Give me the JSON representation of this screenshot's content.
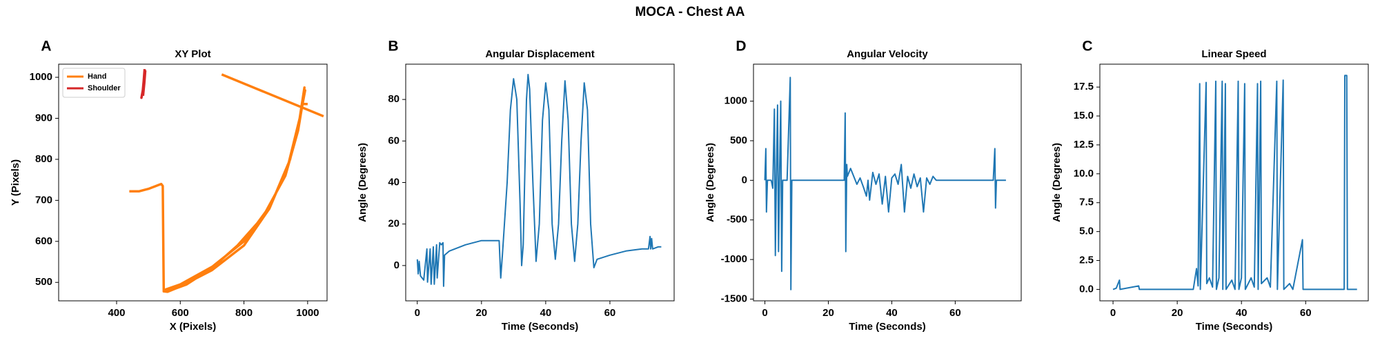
{
  "title": "MOCA - Chest AA",
  "chart_data": [
    {
      "type": "line",
      "panel_label": "A",
      "title": "XY Plot",
      "x_label": "X (Pixels)",
      "y_label": "Y (Pixels)",
      "xlim": [
        218,
        1061
      ],
      "ylim": [
        455,
        1032
      ],
      "xticks": [
        400,
        600,
        800,
        1000
      ],
      "yticks": [
        500,
        600,
        700,
        800,
        900,
        1000
      ],
      "legend": "upper left",
      "series": [
        {
          "name": "Hand",
          "color": "#ff7f0e",
          "x": [
            440,
            470,
            500,
            540,
            545,
            548,
            560,
            600,
            700,
            800,
            880,
            940,
            975,
            990,
            985,
            970,
            930,
            860,
            780,
            700,
            620,
            560,
            552,
            600,
            700,
            800,
            885,
            945,
            978,
            992,
            985,
            982,
            1000,
            null,
            730,
            1050
          ],
          "values": [
            722,
            722,
            728,
            740,
            735,
            478,
            477,
            490,
            530,
            590,
            680,
            790,
            900,
            975,
            940,
            870,
            760,
            660,
            590,
            535,
            495,
            478,
            482,
            495,
            538,
            600,
            690,
            800,
            910,
            968,
            945,
            935,
            935,
            null,
            1007,
            905
          ]
        },
        {
          "name": "Shoulder",
          "color": "#d62728",
          "x": [
            488,
            485,
            482,
            478,
            484,
            490,
            487,
            483
          ],
          "values": [
            1020,
            990,
            965,
            950,
            975,
            1015,
            985,
            955
          ]
        }
      ]
    },
    {
      "type": "line",
      "panel_label": "B",
      "title": "Angular Displacement",
      "x_label": "Time (Seconds)",
      "y_label": "Angle (Degrees)",
      "xlim": [
        -3.6,
        80
      ],
      "ylim": [
        -17,
        97
      ],
      "xticks": [
        0,
        20,
        40,
        60
      ],
      "yticks": [
        0,
        20,
        40,
        60,
        80
      ],
      "series": [
        {
          "name": "Angular Displacement",
          "color": "#1f77b4",
          "x": [
            0,
            0.3,
            0.6,
            1,
            2,
            3,
            3.2,
            4,
            4.3,
            5,
            5.3,
            6,
            6.2,
            7,
            7.5,
            8,
            8.2,
            8.5,
            10,
            15,
            20,
            24,
            25.5,
            26,
            26.5,
            28,
            29,
            30,
            31,
            32,
            32.5,
            33,
            34,
            34.5,
            35,
            36,
            37,
            38,
            39,
            40,
            41,
            42,
            43,
            44,
            45,
            46,
            47,
            48,
            49,
            50,
            51,
            52,
            53,
            54,
            55,
            56,
            60,
            65,
            70,
            72,
            72.5,
            72.7,
            73,
            73.3,
            75,
            76
          ],
          "values": [
            3,
            -4,
            2,
            -5,
            -7,
            8,
            -8,
            8,
            -9,
            9,
            -9,
            10,
            -6,
            11,
            10,
            11,
            -10,
            5,
            7,
            10,
            12,
            12,
            12,
            -6,
            5,
            40,
            75,
            90,
            80,
            30,
            0,
            10,
            80,
            92,
            85,
            40,
            2,
            20,
            70,
            88,
            75,
            20,
            3,
            20,
            60,
            89,
            70,
            20,
            2,
            20,
            60,
            88,
            75,
            20,
            -1,
            3,
            5,
            7,
            8,
            8,
            14,
            8,
            13,
            8,
            9,
            9
          ]
        }
      ]
    },
    {
      "type": "line",
      "panel_label": "D",
      "title": "Angular Velocity",
      "x_label": "Time (Seconds)",
      "y_label": "Angle (Degrees)",
      "xlim": [
        -3.6,
        80.8
      ],
      "ylim": [
        -1522,
        1467
      ],
      "xticks": [
        0,
        20,
        40,
        60
      ],
      "yticks": [
        -1500,
        -1000,
        -500,
        0,
        500,
        1000
      ],
      "series": [
        {
          "name": "Angular Velocity",
          "color": "#1f77b4",
          "x": [
            0,
            0.3,
            0.5,
            0.8,
            2,
            2.5,
            3,
            3.3,
            3.6,
            4,
            4.3,
            4.6,
            5,
            5.3,
            5.6,
            7,
            8,
            8.2,
            8.5,
            10,
            20,
            25,
            25.3,
            25.5,
            25.8,
            26,
            27,
            28,
            29,
            30,
            31,
            32,
            32.5,
            33,
            34,
            35,
            36,
            37,
            38,
            39,
            40,
            41,
            42,
            43,
            44,
            45,
            46,
            47,
            48,
            49,
            50,
            51,
            52,
            53,
            54,
            60,
            72,
            72.5,
            72.7,
            73,
            76
          ],
          "values": [
            0,
            400,
            -400,
            0,
            0,
            -100,
            900,
            -950,
            0,
            950,
            -900,
            0,
            1000,
            -1150,
            0,
            0,
            1300,
            -1380,
            0,
            0,
            0,
            0,
            850,
            -900,
            200,
            50,
            150,
            50,
            -50,
            30,
            -80,
            -200,
            0,
            -250,
            100,
            -50,
            80,
            -300,
            50,
            -400,
            30,
            80,
            -50,
            200,
            -400,
            50,
            -100,
            80,
            -80,
            30,
            -400,
            30,
            -50,
            50,
            0,
            0,
            0,
            400,
            -350,
            0,
            0
          ]
        }
      ]
    },
    {
      "type": "line",
      "panel_label": "C",
      "title": "Linear Speed",
      "x_label": "Time (Seconds)",
      "y_label": "Angle (Degrees)",
      "xlim": [
        -4.1,
        79.5
      ],
      "ylim": [
        -0.99,
        19.48
      ],
      "xticks": [
        0,
        20,
        40,
        60
      ],
      "yticks": [
        {
          "value": 0,
          "label": "0.0"
        },
        2.5,
        {
          "value": 5,
          "label": "5.0"
        },
        7.5,
        {
          "value": 10,
          "label": "10.0"
        },
        12.5,
        {
          "value": 15,
          "label": "15.0"
        },
        17.5
      ],
      "series": [
        {
          "name": "Linear Speed",
          "color": "#1f77b4",
          "x": [
            0,
            1,
            2,
            2.2,
            8,
            8.2,
            25,
            26,
            26.5,
            27,
            27.2,
            29,
            29.2,
            30,
            31,
            32,
            32.2,
            33,
            34,
            34.2,
            35,
            35.2,
            37,
            38,
            39,
            39.2,
            40,
            41,
            41.2,
            43,
            44,
            45,
            45.2,
            46,
            46.2,
            48,
            49,
            51,
            51.2,
            53,
            53.2,
            55,
            56,
            59,
            59.2,
            72,
            72.2,
            72.8,
            73,
            76
          ],
          "values": [
            0,
            0.1,
            0.8,
            0,
            0.3,
            0,
            0,
            1.8,
            0.3,
            17.8,
            0,
            17.9,
            0.5,
            1,
            0.2,
            18,
            0,
            1,
            18,
            0,
            17.8,
            0,
            0.8,
            0,
            18,
            0,
            1,
            17.8,
            0,
            1,
            0.2,
            17.8,
            0,
            18,
            0.5,
            1,
            0.2,
            18,
            0,
            18.1,
            0,
            0.5,
            0,
            4.3,
            0,
            0,
            18.5,
            18.5,
            0,
            0
          ]
        }
      ]
    }
  ]
}
